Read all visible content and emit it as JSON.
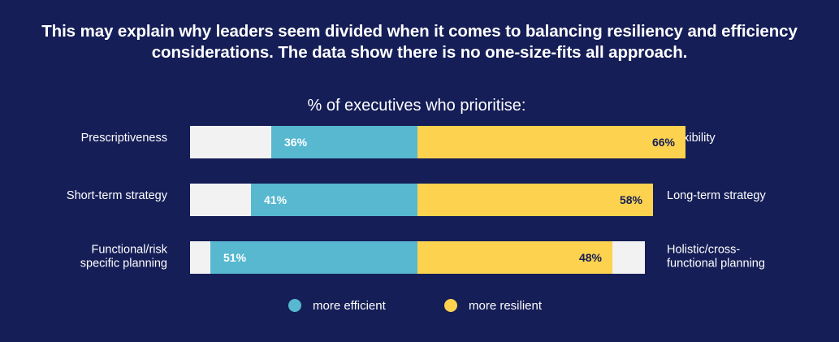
{
  "headline": {
    "line1": "This may explain why leaders seem divided when it comes to balancing resiliency and efficiency",
    "line2": "considerations. The data show there is no one-size-fits all approach."
  },
  "colors": {
    "background": "#151e57",
    "track": "#f2f2f2",
    "efficient": "#57b8d0",
    "resilient": "#fcd24e",
    "text": "#ffffff",
    "value_text": "#ffffff",
    "value_text_dark": "#151e57"
  },
  "chart_data": {
    "type": "bar",
    "title": "% of executives who prioritise:",
    "xlim": [
      -100,
      100
    ],
    "categories": [
      {
        "left": [
          "Prescriptiveness"
        ],
        "right": [
          "Flexibility"
        ]
      },
      {
        "left": [
          "Short-term strategy"
        ],
        "right": [
          "Long-term strategy"
        ]
      },
      {
        "left": [
          "Functional/risk",
          "specific planning"
        ],
        "right": [
          "Holistic/cross-",
          "functional planning"
        ]
      }
    ],
    "series": [
      {
        "name": "more efficient",
        "values": [
          36,
          41,
          51
        ],
        "labels": [
          "36%",
          "41%",
          "51%"
        ]
      },
      {
        "name": "more resilient",
        "values": [
          66,
          58,
          48
        ],
        "labels": [
          "66%",
          "58%",
          "48%"
        ]
      }
    ],
    "legend": "bottom-center"
  }
}
